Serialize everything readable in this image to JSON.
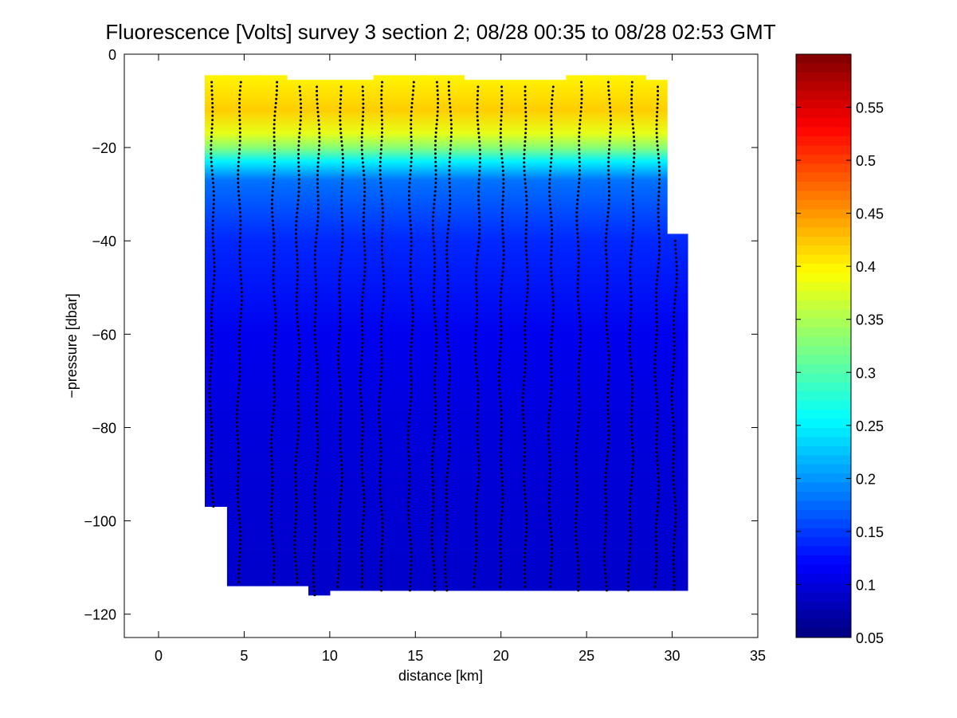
{
  "chart_data": {
    "type": "heatmap",
    "title": "Fluorescence [Volts] survey 3 section 2; 08/28 00:35 to 08/28 02:53 GMT",
    "xlabel": "distance [km]",
    "ylabel": "−pressure [dbar]",
    "xlim": [
      -2,
      35
    ],
    "ylim": [
      -125,
      0
    ],
    "xticks": [
      0,
      5,
      10,
      15,
      20,
      25,
      30,
      35
    ],
    "yticks": [
      0,
      -20,
      -40,
      -60,
      -80,
      -100,
      -120
    ],
    "xtick_labels": [
      "0",
      "5",
      "10",
      "15",
      "20",
      "25",
      "30",
      "35"
    ],
    "ytick_labels": [
      "0",
      "−20",
      "−40",
      "−60",
      "−80",
      "−100",
      "−120"
    ],
    "grid": false,
    "colormap": "jet",
    "colorbar": {
      "clim": [
        0.05,
        0.6
      ],
      "ticks": [
        0.05,
        0.1,
        0.15,
        0.2,
        0.25,
        0.3,
        0.35,
        0.4,
        0.45,
        0.5,
        0.55
      ],
      "tick_labels": [
        "0.05",
        "0.1",
        "0.15",
        "0.2",
        "0.25",
        "0.3",
        "0.35",
        "0.4",
        "0.45",
        "0.5",
        "0.55"
      ]
    },
    "profiles": [
      {
        "x": 3.2,
        "zmin": -6,
        "zmax": -97
      },
      {
        "x": 4.8,
        "zmin": -6,
        "zmax": -114
      },
      {
        "x": 6.8,
        "zmin": -6,
        "zmax": -114
      },
      {
        "x": 8.2,
        "zmin": -7,
        "zmax": -114
      },
      {
        "x": 9.3,
        "zmin": -7,
        "zmax": -116
      },
      {
        "x": 10.7,
        "zmin": -7,
        "zmax": -115
      },
      {
        "x": 12.0,
        "zmin": -7,
        "zmax": -115
      },
      {
        "x": 13.1,
        "zmin": -6,
        "zmax": -115
      },
      {
        "x": 14.8,
        "zmin": -6,
        "zmax": -115
      },
      {
        "x": 16.2,
        "zmin": -6,
        "zmax": -115
      },
      {
        "x": 17.0,
        "zmin": -6,
        "zmax": -115
      },
      {
        "x": 18.7,
        "zmin": -7,
        "zmax": -115
      },
      {
        "x": 20.1,
        "zmin": -7,
        "zmax": -115
      },
      {
        "x": 21.5,
        "zmin": -7,
        "zmax": -115
      },
      {
        "x": 23.0,
        "zmin": -7,
        "zmax": -115
      },
      {
        "x": 24.6,
        "zmin": -6,
        "zmax": -115
      },
      {
        "x": 26.3,
        "zmin": -6,
        "zmax": -115
      },
      {
        "x": 27.7,
        "zmin": -6,
        "zmax": -115
      },
      {
        "x": 29.2,
        "zmin": -7,
        "zmax": -115
      },
      {
        "x": 30.2,
        "zmin": -40,
        "zmax": -115
      }
    ],
    "fluorescence_profile": [
      {
        "depth": -5,
        "value": 0.4
      },
      {
        "depth": -12,
        "value": 0.42
      },
      {
        "depth": -17,
        "value": 0.38
      },
      {
        "depth": -20,
        "value": 0.33
      },
      {
        "depth": -23,
        "value": 0.25
      },
      {
        "depth": -27,
        "value": 0.18
      },
      {
        "depth": -40,
        "value": 0.14
      },
      {
        "depth": -60,
        "value": 0.11
      },
      {
        "depth": -80,
        "value": 0.1
      },
      {
        "depth": -116,
        "value": 0.09
      }
    ]
  }
}
